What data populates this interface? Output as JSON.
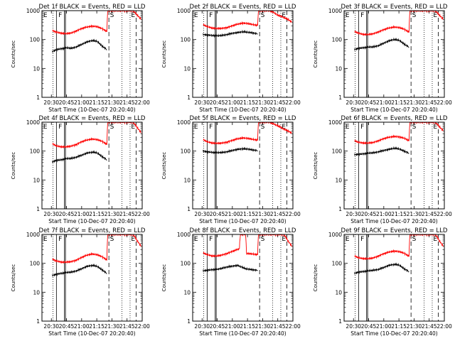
{
  "figure": {
    "y_axis_label": "Counts/sec",
    "x_axis_label": "Start Time (10-Dec-07 20:20:40)",
    "x_tick_labels": [
      "20:30",
      "20:45",
      "21:00",
      "21:15",
      "21:30",
      "21:45",
      "22:00"
    ],
    "y_tick_labels": [
      "1",
      "10",
      "100",
      "1000"
    ],
    "marker_labels": [
      "E",
      "F",
      "S",
      "E"
    ]
  },
  "colors": {
    "events": "#000000",
    "lld": "#ff0000",
    "axes": "#000000",
    "background": "#ffffff"
  },
  "chart_data": [
    {
      "type": "line",
      "title": "Det 1f BLACK = Events, RED = LLD",
      "xlabel": "Start Time (10-Dec-07 20:20:40)",
      "ylabel": "Counts/sec",
      "x_range": [
        "20:20:40",
        "22:00"
      ],
      "ylim": [
        1,
        1000
      ],
      "log_y": true,
      "series": [
        {
          "name": "Events",
          "x": [
            "20:31",
            "20:35",
            "20:40",
            "20:45",
            "20:50",
            "20:55",
            "21:00",
            "21:05",
            "21:10",
            "21:15",
            "21:20",
            "21:25"
          ],
          "values": [
            38,
            45,
            48,
            52,
            50,
            56,
            68,
            82,
            92,
            88,
            60,
            45
          ]
        },
        {
          "name": "LLD",
          "x": [
            "20:31",
            "20:35",
            "20:40",
            "20:45",
            "20:50",
            "20:55",
            "21:00",
            "21:05",
            "21:10",
            "21:15",
            "21:20",
            "21:25",
            "21:26",
            "21:51",
            "21:55",
            "21:59"
          ],
          "values": [
            205,
            180,
            165,
            160,
            170,
            200,
            240,
            270,
            290,
            280,
            240,
            190,
            1000,
            1000,
            700,
            500
          ]
        }
      ]
    },
    {
      "type": "line",
      "title": "Det 2f BLACK = Events, RED = LLD",
      "xlabel": "Start Time (10-Dec-07 20:20:40)",
      "ylabel": "Counts/sec",
      "x_range": [
        "20:20:40",
        "22:00"
      ],
      "ylim": [
        1,
        1000
      ],
      "log_y": true,
      "series": [
        {
          "name": "Events",
          "x": [
            "20:31",
            "20:35",
            "20:40",
            "20:45",
            "20:50",
            "20:55",
            "21:00",
            "21:05",
            "21:10",
            "21:15",
            "21:20",
            "21:25"
          ],
          "values": [
            150,
            145,
            138,
            135,
            140,
            150,
            165,
            175,
            185,
            180,
            170,
            160
          ]
        },
        {
          "name": "LLD",
          "x": [
            "20:31",
            "20:35",
            "20:40",
            "20:45",
            "20:50",
            "20:55",
            "21:00",
            "21:05",
            "21:10",
            "21:15",
            "21:20",
            "21:25",
            "21:26",
            "21:37",
            "21:40",
            "21:45",
            "21:50",
            "21:55",
            "21:59"
          ],
          "values": [
            330,
            280,
            250,
            240,
            245,
            260,
            300,
            340,
            370,
            360,
            330,
            310,
            1000,
            1000,
            900,
            700,
            600,
            500,
            400
          ]
        }
      ]
    },
    {
      "type": "line",
      "title": "Det 3f BLACK = Events, RED = LLD",
      "xlabel": "Start Time (10-Dec-07 20:20:40)",
      "ylabel": "Counts/sec",
      "x_range": [
        "20:20:40",
        "22:00"
      ],
      "ylim": [
        1,
        1000
      ],
      "log_y": true,
      "series": [
        {
          "name": "Events",
          "x": [
            "20:31",
            "20:35",
            "20:40",
            "20:45",
            "20:50",
            "20:55",
            "21:00",
            "21:05",
            "21:10",
            "21:15",
            "21:20",
            "21:25"
          ],
          "values": [
            45,
            50,
            52,
            55,
            56,
            62,
            75,
            90,
            100,
            95,
            70,
            55
          ]
        },
        {
          "name": "LLD",
          "x": [
            "20:31",
            "20:35",
            "20:40",
            "20:45",
            "20:50",
            "20:55",
            "21:00",
            "21:05",
            "21:10",
            "21:15",
            "21:20",
            "21:25",
            "21:26",
            "21:51",
            "21:55",
            "21:59"
          ],
          "values": [
            190,
            165,
            150,
            150,
            160,
            185,
            220,
            250,
            270,
            260,
            230,
            180,
            1000,
            1000,
            700,
            500
          ]
        }
      ]
    },
    {
      "type": "line",
      "title": "Det 4f BLACK = Events, RED = LLD",
      "xlabel": "Start Time (10-Dec-07 20:20:40)",
      "ylabel": "Counts/sec",
      "x_range": [
        "20:20:40",
        "22:00"
      ],
      "ylim": [
        1,
        1000
      ],
      "log_y": true,
      "series": [
        {
          "name": "Events",
          "x": [
            "20:31",
            "20:35",
            "20:40",
            "20:45",
            "20:50",
            "20:55",
            "21:00",
            "21:05",
            "21:10",
            "21:15",
            "21:20",
            "21:25"
          ],
          "values": [
            42,
            48,
            50,
            55,
            56,
            62,
            72,
            85,
            92,
            88,
            65,
            50
          ]
        },
        {
          "name": "LLD",
          "x": [
            "20:31",
            "20:35",
            "20:40",
            "20:45",
            "20:50",
            "20:55",
            "21:00",
            "21:05",
            "21:10",
            "21:15",
            "21:20",
            "21:25",
            "21:26",
            "21:51",
            "21:55",
            "21:59"
          ],
          "values": [
            180,
            150,
            140,
            140,
            150,
            170,
            210,
            240,
            260,
            250,
            220,
            170,
            1000,
            1000,
            650,
            420
          ]
        }
      ]
    },
    {
      "type": "line",
      "title": "Det 5f BLACK = Events, RED = LLD",
      "xlabel": "Start Time (10-Dec-07 20:20:40)",
      "ylabel": "Counts/sec",
      "x_range": [
        "20:20:40",
        "22:00"
      ],
      "ylim": [
        1,
        1000
      ],
      "log_y": true,
      "series": [
        {
          "name": "Events",
          "x": [
            "20:31",
            "20:35",
            "20:40",
            "20:45",
            "20:50",
            "20:55",
            "21:00",
            "21:05",
            "21:10",
            "21:15",
            "21:20",
            "21:25"
          ],
          "values": [
            100,
            95,
            90,
            88,
            90,
            95,
            105,
            115,
            120,
            118,
            110,
            105
          ]
        },
        {
          "name": "LLD",
          "x": [
            "20:31",
            "20:35",
            "20:40",
            "20:45",
            "20:50",
            "20:55",
            "21:00",
            "21:05",
            "21:10",
            "21:15",
            "21:20",
            "21:25",
            "21:26",
            "21:37",
            "21:40",
            "21:45",
            "21:50",
            "21:55",
            "21:59"
          ],
          "values": [
            250,
            210,
            190,
            185,
            190,
            205,
            235,
            265,
            285,
            275,
            255,
            240,
            1000,
            1000,
            900,
            750,
            600,
            500,
            420
          ]
        }
      ]
    },
    {
      "type": "line",
      "title": "Det 6f BLACK = Events, RED = LLD",
      "xlabel": "Start Time (10-Dec-07 20:20:40)",
      "ylabel": "Counts/sec",
      "x_range": [
        "20:20:40",
        "22:00"
      ],
      "ylim": [
        1,
        1000
      ],
      "log_y": true,
      "series": [
        {
          "name": "Events",
          "x": [
            "20:31",
            "20:35",
            "20:40",
            "20:45",
            "20:50",
            "20:55",
            "21:00",
            "21:05",
            "21:10",
            "21:15",
            "21:20",
            "21:25"
          ],
          "values": [
            75,
            78,
            80,
            85,
            88,
            95,
            105,
            115,
            125,
            120,
            100,
            85
          ]
        },
        {
          "name": "LLD",
          "x": [
            "20:31",
            "20:35",
            "20:40",
            "20:45",
            "20:50",
            "20:55",
            "21:00",
            "21:05",
            "21:10",
            "21:15",
            "21:20",
            "21:25",
            "21:26",
            "21:51",
            "21:55",
            "21:59"
          ],
          "values": [
            230,
            200,
            190,
            190,
            200,
            230,
            270,
            300,
            320,
            310,
            280,
            230,
            1000,
            1000,
            700,
            500
          ]
        }
      ]
    },
    {
      "type": "line",
      "title": "Det 7f BLACK = Events, RED = LLD",
      "xlabel": "Start Time (10-Dec-07 20:20:40)",
      "ylabel": "Counts/sec",
      "x_range": [
        "20:20:40",
        "22:00"
      ],
      "ylim": [
        1,
        1000
      ],
      "log_y": true,
      "series": [
        {
          "name": "Events",
          "x": [
            "20:31",
            "20:35",
            "20:40",
            "20:45",
            "20:50",
            "20:55",
            "21:00",
            "21:05",
            "21:10",
            "21:15",
            "21:20",
            "21:25"
          ],
          "values": [
            38,
            42,
            45,
            48,
            50,
            55,
            65,
            78,
            85,
            80,
            60,
            45
          ]
        },
        {
          "name": "LLD",
          "x": [
            "20:31",
            "20:35",
            "20:40",
            "20:45",
            "20:50",
            "20:55",
            "21:00",
            "21:05",
            "21:10",
            "21:15",
            "21:20",
            "21:25",
            "21:26",
            "21:51",
            "21:55",
            "21:59"
          ],
          "values": [
            140,
            120,
            110,
            110,
            115,
            130,
            160,
            190,
            210,
            200,
            170,
            130,
            1000,
            1000,
            600,
            380
          ]
        }
      ]
    },
    {
      "type": "line",
      "title": "Det 8f BLACK = Events, RED = LLD",
      "xlabel": "Start Time (10-Dec-07 20:20:40)",
      "ylabel": "Counts/sec",
      "x_range": [
        "20:20:40",
        "22:00"
      ],
      "ylim": [
        1,
        1000
      ],
      "log_y": true,
      "series": [
        {
          "name": "Events",
          "x": [
            "20:31",
            "20:35",
            "20:40",
            "20:45",
            "20:50",
            "20:55",
            "21:00",
            "21:05",
            "21:13",
            "21:20",
            "21:25"
          ],
          "values": [
            55,
            58,
            60,
            62,
            68,
            75,
            80,
            85,
            65,
            60,
            58
          ]
        },
        {
          "name": "LLD",
          "x": [
            "20:31",
            "20:35",
            "20:40",
            "20:45",
            "20:50",
            "20:55",
            "21:00",
            "21:05",
            "21:07",
            "21:08",
            "21:13",
            "21:14",
            "21:20",
            "21:25",
            "21:26",
            "21:51",
            "21:55",
            "21:59"
          ],
          "values": [
            230,
            200,
            180,
            180,
            195,
            220,
            260,
            300,
            320,
            1000,
            1000,
            220,
            210,
            200,
            1000,
            1000,
            600,
            380
          ]
        }
      ]
    },
    {
      "type": "line",
      "title": "Det 9f BLACK = Events, RED = LLD",
      "xlabel": "Start Time (10-Dec-07 20:20:40)",
      "ylabel": "Counts/sec",
      "x_range": [
        "20:20:40",
        "22:00"
      ],
      "ylim": [
        1,
        1000
      ],
      "log_y": true,
      "series": [
        {
          "name": "Events",
          "x": [
            "20:31",
            "20:35",
            "20:40",
            "20:45",
            "20:50",
            "20:55",
            "21:00",
            "21:05",
            "21:10",
            "21:15",
            "21:20",
            "21:25"
          ],
          "values": [
            45,
            50,
            52,
            55,
            58,
            62,
            72,
            85,
            92,
            88,
            65,
            52
          ]
        },
        {
          "name": "LLD",
          "x": [
            "20:31",
            "20:35",
            "20:40",
            "20:45",
            "20:50",
            "20:55",
            "21:00",
            "21:05",
            "21:10",
            "21:15",
            "21:20",
            "21:25",
            "21:26",
            "21:51",
            "21:55",
            "21:59"
          ],
          "values": [
            180,
            155,
            145,
            145,
            155,
            180,
            215,
            245,
            265,
            255,
            225,
            175,
            1000,
            1000,
            600,
            380
          ]
        }
      ]
    }
  ]
}
